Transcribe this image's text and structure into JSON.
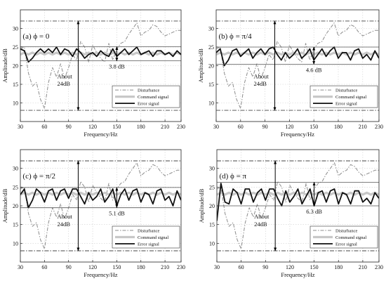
{
  "figure": {
    "background": "#ffffff"
  },
  "colors": {
    "disturbance": "#8c8c8c",
    "command": "#c8c8c8",
    "error": "#111111",
    "grid": "#d0d0d0",
    "reference": "#444444",
    "band": "#555555"
  },
  "chart_data": [
    {
      "type": "line",
      "panel_label": "(a) ϕ = 0",
      "xlabel": "Frequency/Hz",
      "ylabel": "Amplitude/dB",
      "xlim": [
        30,
        230
      ],
      "ylim": [
        5,
        35
      ],
      "xticks": [
        30,
        60,
        90,
        120,
        150,
        180,
        210,
        230
      ],
      "yticks": [
        10,
        15,
        20,
        25,
        30
      ],
      "grid": true,
      "legend_position": "lower-right",
      "reference_lines": {
        "upper": 32,
        "lower": 8
      },
      "band_lines": [
        25.1,
        21.3
      ],
      "annotations": {
        "band_text": "3.8 dB",
        "band_x": 150,
        "about_text": [
          "About",
          "24dB"
        ],
        "about_x": 102
      },
      "x": [
        30,
        35,
        40,
        45,
        50,
        55,
        60,
        65,
        70,
        75,
        80,
        85,
        90,
        95,
        100,
        105,
        110,
        115,
        120,
        125,
        130,
        135,
        140,
        145,
        150,
        155,
        160,
        165,
        170,
        175,
        180,
        185,
        190,
        195,
        200,
        205,
        210,
        215,
        220,
        225,
        230
      ],
      "series": [
        {
          "name": "Disturbance",
          "values": [
            24.5,
            25,
            18,
            14.5,
            15.5,
            11,
            8.5,
            15.5,
            19.5,
            17,
            20.5,
            16.5,
            19.5,
            23,
            21.5,
            26.5,
            25,
            21,
            25.5,
            23.5,
            22,
            21,
            26,
            21.5,
            24.5,
            26,
            26.5,
            28.5,
            30,
            31.5,
            28,
            29,
            29.5,
            31,
            30.5,
            29,
            28,
            28.5,
            29,
            29.5,
            29.5
          ]
        },
        {
          "name": "Command signal",
          "values": [
            23,
            23.5,
            23,
            23.5,
            23,
            23.5,
            23,
            23.5,
            23,
            23.5,
            23,
            23.5,
            23,
            23.5,
            23,
            23.5,
            23,
            23.5,
            23,
            23.5,
            23,
            23.5,
            23,
            23.5,
            23,
            23.5,
            23,
            23.5,
            23,
            23.5,
            23,
            23.5,
            23,
            23.5,
            23,
            23.5,
            23,
            23.5,
            23,
            23.5,
            23
          ]
        },
        {
          "name": "Error signal",
          "values": [
            24.5,
            24,
            21,
            22,
            23.5,
            24.5,
            23.5,
            24.5,
            23.5,
            25,
            23,
            24.5,
            24,
            22.5,
            24.5,
            23.5,
            22,
            23,
            23.5,
            22.5,
            24,
            23,
            22.5,
            24.5,
            22.5,
            23.5,
            24.5,
            23,
            24,
            25,
            23,
            23.5,
            24,
            22.5,
            24,
            24,
            23,
            23.5,
            22.5,
            24,
            23
          ]
        }
      ]
    },
    {
      "type": "line",
      "panel_label": "(b) ϕ = π/4",
      "xlabel": "Frequency/Hz",
      "ylabel": "Amplitude/dB",
      "xlim": [
        30,
        230
      ],
      "ylim": [
        5,
        35
      ],
      "xticks": [
        30,
        60,
        90,
        120,
        150,
        180,
        210,
        230
      ],
      "yticks": [
        10,
        15,
        20,
        25,
        30
      ],
      "grid": true,
      "legend_position": "lower-right",
      "reference_lines": {
        "upper": 32,
        "lower": 8
      },
      "band_lines": [
        25,
        20.4
      ],
      "annotations": {
        "band_text": "4.6 dB",
        "band_x": 150,
        "about_text": [
          "About",
          "24dB"
        ],
        "about_x": 102
      },
      "x": [
        30,
        35,
        40,
        45,
        50,
        55,
        60,
        65,
        70,
        75,
        80,
        85,
        90,
        95,
        100,
        105,
        110,
        115,
        120,
        125,
        130,
        135,
        140,
        145,
        150,
        155,
        160,
        165,
        170,
        175,
        180,
        185,
        190,
        195,
        200,
        205,
        210,
        215,
        220,
        225,
        230
      ],
      "series": [
        {
          "name": "Disturbance",
          "values": [
            24.5,
            25,
            18,
            14.5,
            15.5,
            11,
            8.5,
            15.5,
            19.5,
            17,
            20.5,
            16.5,
            19.5,
            23,
            21.5,
            26.5,
            25,
            21,
            25.5,
            23.5,
            22,
            21,
            26,
            21.5,
            24.5,
            26,
            26.5,
            28.5,
            30,
            31.5,
            28,
            29,
            29.5,
            31,
            30.5,
            29,
            28,
            28.5,
            29,
            29.5,
            29.5
          ]
        },
        {
          "name": "Command signal",
          "values": [
            23,
            23.5,
            23,
            23.5,
            23,
            23.5,
            23,
            23.5,
            23,
            23.5,
            23,
            23.5,
            23,
            23.5,
            23,
            23.5,
            23,
            23.5,
            23,
            23.5,
            23,
            23.5,
            23,
            23.5,
            23,
            23.5,
            23,
            23.5,
            23,
            23.5,
            23,
            23.5,
            23,
            23.5,
            23,
            23.5,
            23,
            23.5,
            23,
            23.5,
            23
          ]
        },
        {
          "name": "Error signal",
          "values": [
            23.5,
            24.5,
            20,
            21.5,
            24,
            24.5,
            22.5,
            23.5,
            24.5,
            22,
            23.5,
            24.5,
            23,
            24.5,
            25,
            23,
            21.5,
            23.5,
            22,
            23,
            24.5,
            22,
            23,
            24.5,
            21.5,
            23,
            24.5,
            22.5,
            24,
            25,
            22,
            23.5,
            23.5,
            21.5,
            24,
            24.5,
            22,
            23,
            21.5,
            24,
            22
          ]
        }
      ]
    },
    {
      "type": "line",
      "panel_label": "(c) ϕ = π/2",
      "xlabel": "Frequency/Hz",
      "ylabel": "Amplitude/dB",
      "xlim": [
        30,
        230
      ],
      "ylim": [
        5,
        35
      ],
      "xticks": [
        30,
        60,
        90,
        120,
        150,
        180,
        210,
        230
      ],
      "yticks": [
        10,
        15,
        20,
        25,
        30
      ],
      "grid": true,
      "legend_position": "lower-right",
      "reference_lines": {
        "upper": 32,
        "lower": 8
      },
      "band_lines": [
        24.9,
        19.5
      ],
      "annotations": {
        "band_text": "5.1 dB",
        "band_x": 150,
        "about_text": [
          "About",
          "24dB"
        ],
        "about_x": 102
      },
      "x": [
        30,
        35,
        40,
        45,
        50,
        55,
        60,
        65,
        70,
        75,
        80,
        85,
        90,
        95,
        100,
        105,
        110,
        115,
        120,
        125,
        130,
        135,
        140,
        145,
        150,
        155,
        160,
        165,
        170,
        175,
        180,
        185,
        190,
        195,
        200,
        205,
        210,
        215,
        220,
        225,
        230
      ],
      "series": [
        {
          "name": "Disturbance",
          "values": [
            24.5,
            25,
            18,
            14.5,
            15.5,
            11,
            8.5,
            15.5,
            19.5,
            17,
            20.5,
            16.5,
            19.5,
            23,
            21.5,
            26.5,
            25,
            21,
            25.5,
            23.5,
            22,
            21,
            26,
            21.5,
            24.5,
            26,
            26.5,
            28.5,
            30,
            31.5,
            28,
            29,
            29.5,
            31,
            30.5,
            29,
            28,
            28.5,
            29,
            29.5,
            29.5
          ]
        },
        {
          "name": "Command signal",
          "values": [
            23,
            23.5,
            23,
            23.5,
            23,
            23.5,
            23,
            23.5,
            23,
            23.5,
            23,
            23.5,
            23,
            23.5,
            23,
            23.5,
            23,
            23.5,
            23,
            23.5,
            23,
            23.5,
            23,
            23.5,
            23,
            23.5,
            23,
            23.5,
            23,
            23.5,
            23,
            23.5,
            23,
            23.5,
            23,
            23.5,
            23,
            23.5,
            23,
            23.5,
            23
          ]
        },
        {
          "name": "Error signal",
          "values": [
            23,
            24.5,
            19.5,
            21.5,
            24.5,
            23.5,
            21,
            24,
            24.5,
            21.5,
            24,
            24.5,
            22,
            24.5,
            24.5,
            22.5,
            20.5,
            23.5,
            21.5,
            22.5,
            24.5,
            21,
            22.5,
            24.5,
            20,
            23,
            24.5,
            21.5,
            24,
            24.5,
            21,
            23.5,
            23,
            20.5,
            24,
            24.5,
            21.5,
            22.5,
            20,
            24,
            21.5
          ]
        }
      ]
    },
    {
      "type": "line",
      "panel_label": "(d) ϕ = π",
      "xlabel": "Frequency/Hz",
      "ylabel": "Amplitude/dB",
      "xlim": [
        30,
        230
      ],
      "ylim": [
        5,
        35
      ],
      "xticks": [
        30,
        60,
        90,
        120,
        150,
        180,
        210,
        230
      ],
      "yticks": [
        10,
        15,
        20,
        25,
        30
      ],
      "grid": true,
      "legend_position": "lower-right",
      "reference_lines": {
        "upper": 32,
        "lower": 8
      },
      "band_lines": [
        26.3,
        20
      ],
      "annotations": {
        "band_text": "6.3 dB",
        "band_x": 150,
        "about_text": [
          "About",
          "24dB"
        ],
        "about_x": 102
      },
      "x": [
        30,
        35,
        40,
        45,
        50,
        55,
        60,
        65,
        70,
        75,
        80,
        85,
        90,
        95,
        100,
        105,
        110,
        115,
        120,
        125,
        130,
        135,
        140,
        145,
        150,
        155,
        160,
        165,
        170,
        175,
        180,
        185,
        190,
        195,
        200,
        205,
        210,
        215,
        220,
        225,
        230
      ],
      "series": [
        {
          "name": "Disturbance",
          "values": [
            24.5,
            25,
            18,
            14.5,
            15.5,
            11,
            8.5,
            15.5,
            19.5,
            17,
            20.5,
            16.5,
            19.5,
            23,
            21.5,
            26.5,
            25,
            21,
            25.5,
            23.5,
            22,
            21,
            26,
            21.5,
            24.5,
            26,
            26.5,
            28.5,
            30,
            31.5,
            28,
            29,
            29.5,
            31,
            30.5,
            29,
            28,
            28.5,
            29,
            29.5,
            29.5
          ]
        },
        {
          "name": "Command signal",
          "values": [
            23,
            23.5,
            23,
            23.5,
            23,
            23.5,
            23,
            23.5,
            23,
            23.5,
            23,
            23.5,
            23,
            23.5,
            23,
            23.5,
            23,
            23.5,
            23,
            23.5,
            23,
            23.5,
            23,
            23.5,
            23,
            23.5,
            23,
            23.5,
            23,
            23.5,
            23,
            23.5,
            23,
            23.5,
            23,
            23.5,
            23,
            23.5,
            23,
            23.5,
            23
          ]
        },
        {
          "name": "Error signal",
          "values": [
            16,
            26,
            21,
            20.5,
            24.5,
            23.5,
            20.5,
            24.5,
            24.5,
            21,
            23.5,
            24.5,
            21.5,
            24.5,
            24.5,
            22,
            20,
            24,
            21,
            22.5,
            24.5,
            20.5,
            22.5,
            24.5,
            20,
            23.5,
            24,
            21,
            24,
            24.5,
            20.5,
            23.5,
            23,
            20.5,
            24,
            24,
            21,
            22,
            20.5,
            23.5,
            22
          ]
        }
      ]
    }
  ]
}
